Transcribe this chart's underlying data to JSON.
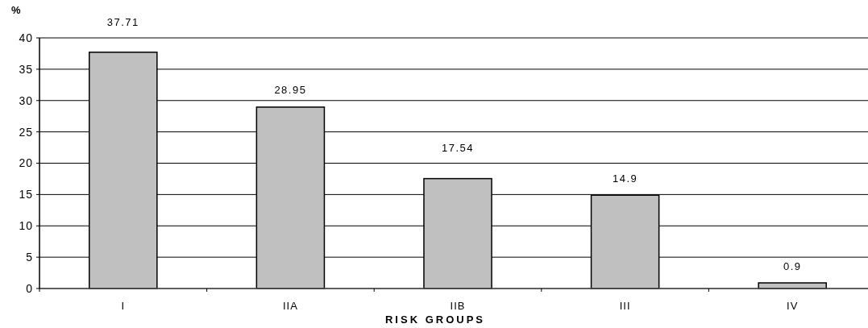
{
  "chart_data": {
    "type": "bar",
    "ylabel": "%",
    "xlabel": "RISK GROUPS",
    "categories": [
      "I",
      "IIA",
      "IIB",
      "III",
      "IV"
    ],
    "values": [
      37.71,
      28.95,
      17.54,
      14.9,
      0.9
    ],
    "color": "#c0c0c0",
    "ylim": [
      0,
      40
    ],
    "yticks": [
      0,
      5,
      10,
      15,
      20,
      25,
      30,
      35,
      40
    ],
    "grid": "y",
    "data_labels": true
  }
}
